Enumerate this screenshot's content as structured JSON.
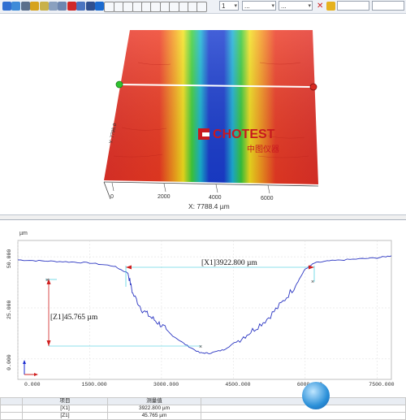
{
  "toolbar": {
    "icons": [
      "grid-icon",
      "grid-alt-icon",
      "home-icon",
      "cube-icon",
      "cube-front-icon",
      "cube-side-icon",
      "cube-top-icon",
      "color-map-icon",
      "table-icon",
      "pan-icon",
      "axis-icon",
      "cursor-icon",
      "brush-icon",
      "distance-icon",
      "horizontal-icon",
      "vertical-icon",
      "cross-icon",
      "point-icon",
      "angle-icon",
      "step-icon",
      "zoom-icon",
      "fit-icon"
    ],
    "page_select": "1",
    "select_a": "...",
    "select_b": "...",
    "close_label": "✕"
  },
  "view3d": {
    "x_readout": "X: 7788.4 µm",
    "y_readout": "Y: 7795.0",
    "logo_text": "CHOTEST",
    "logo_sub": "中图仪器",
    "x_ticks": [
      "0",
      "2000",
      "4000",
      "6000"
    ],
    "colors": {
      "high": "#e8322a",
      "mid": "#f6d21a",
      "low": "#1936c8",
      "green": "#2cc23a"
    }
  },
  "profile": {
    "unit": "µm",
    "chart_data": {
      "type": "line",
      "title": "",
      "xlabel": "",
      "ylabel": "µm",
      "xlim": [
        0,
        7800
      ],
      "ylim": [
        -10,
        58
      ],
      "x_ticks": [
        "0.000",
        "1500.000",
        "3000.000",
        "4500.000",
        "6000.000",
        "7500.000"
      ],
      "y_ticks": [
        "50.000",
        "25.000",
        "0.000"
      ],
      "series": [
        {
          "x": [
            0,
            500,
            1000,
            1500,
            2000,
            2300,
            2400,
            2600,
            2800,
            3000,
            3200,
            3500,
            3800,
            4000,
            4300,
            4600,
            4900,
            5200,
            5500,
            5800,
            6000,
            6200,
            6500,
            7000,
            7500,
            7800
          ],
          "y": [
            48.5,
            48.0,
            47.6,
            47.0,
            45.5,
            42.0,
            32.0,
            24.0,
            20.0,
            16.5,
            12.0,
            7.0,
            3.0,
            2.8,
            4.5,
            9.0,
            14.0,
            19.5,
            27.0,
            36.0,
            44.0,
            47.0,
            48.0,
            48.8,
            49.5,
            50.5
          ]
        }
      ],
      "annotations": [
        {
          "label": "[X1]3922.800 µm"
        },
        {
          "label": "[Z1]45.765 µm"
        }
      ]
    },
    "table": {
      "headers": [
        "项目",
        "测量值"
      ],
      "rows": [
        [
          "[X1]",
          "3922.800 µm"
        ],
        [
          "[Z1]",
          "45.765 µm"
        ]
      ]
    }
  }
}
